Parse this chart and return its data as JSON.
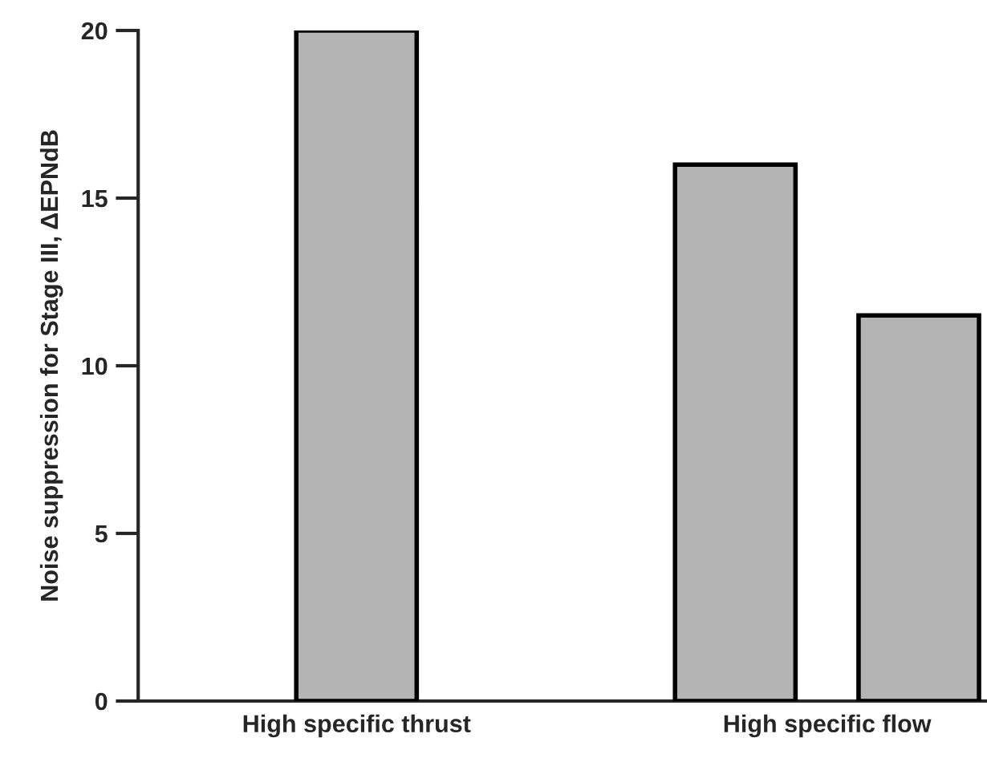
{
  "chart_data": {
    "type": "bar",
    "ylabel": "Noise suppression for Stage III, ΔEPNdB",
    "categories": [
      "High specific thrust",
      "High specific flow"
    ],
    "series": [
      {
        "color": "#b4b4b4",
        "values": [
          20,
          16
        ]
      },
      {
        "color": "#b4b4b4",
        "values": [
          null,
          11.5
        ]
      }
    ],
    "ylim": [
      0,
      20
    ],
    "yticks": [
      0,
      5,
      10,
      15,
      20
    ],
    "grid": false,
    "legend": false
  }
}
